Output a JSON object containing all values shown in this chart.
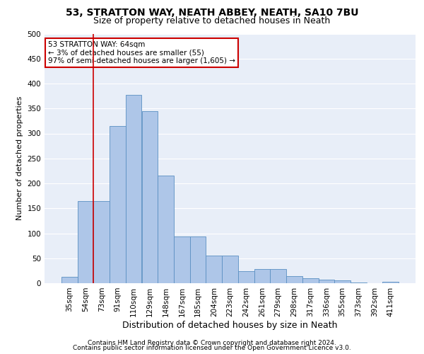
{
  "title1": "53, STRATTON WAY, NEATH ABBEY, NEATH, SA10 7BU",
  "title2": "Size of property relative to detached houses in Neath",
  "xlabel": "Distribution of detached houses by size in Neath",
  "ylabel": "Number of detached properties",
  "footnote1": "Contains HM Land Registry data © Crown copyright and database right 2024.",
  "footnote2": "Contains public sector information licensed under the Open Government Licence v3.0.",
  "bar_labels": [
    "35sqm",
    "54sqm",
    "73sqm",
    "91sqm",
    "110sqm",
    "129sqm",
    "148sqm",
    "167sqm",
    "185sqm",
    "204sqm",
    "223sqm",
    "242sqm",
    "261sqm",
    "279sqm",
    "298sqm",
    "317sqm",
    "336sqm",
    "355sqm",
    "373sqm",
    "392sqm",
    "411sqm"
  ],
  "bar_heights": [
    13,
    165,
    165,
    315,
    378,
    345,
    215,
    93,
    93,
    55,
    55,
    24,
    29,
    29,
    14,
    10,
    7,
    5,
    2,
    0,
    3
  ],
  "bar_color": "#aec6e8",
  "bar_edge_color": "#5a8fc2",
  "vline_x": 1.5,
  "vline_color": "#cc0000",
  "annotation_text": "53 STRATTON WAY: 64sqm\n← 3% of detached houses are smaller (55)\n97% of semi-detached houses are larger (1,605) →",
  "annotation_box_color": "#ffffff",
  "annotation_box_edge": "#cc0000",
  "ylim": [
    0,
    500
  ],
  "yticks": [
    0,
    50,
    100,
    150,
    200,
    250,
    300,
    350,
    400,
    450,
    500
  ],
  "bg_color": "#e8eef8",
  "fig_bg_color": "#ffffff",
  "grid_color": "#ffffff",
  "title1_fontsize": 10,
  "title2_fontsize": 9,
  "xlabel_fontsize": 9,
  "ylabel_fontsize": 8,
  "tick_fontsize": 7.5,
  "annotation_fontsize": 7.5,
  "footnote_fontsize": 6.5
}
